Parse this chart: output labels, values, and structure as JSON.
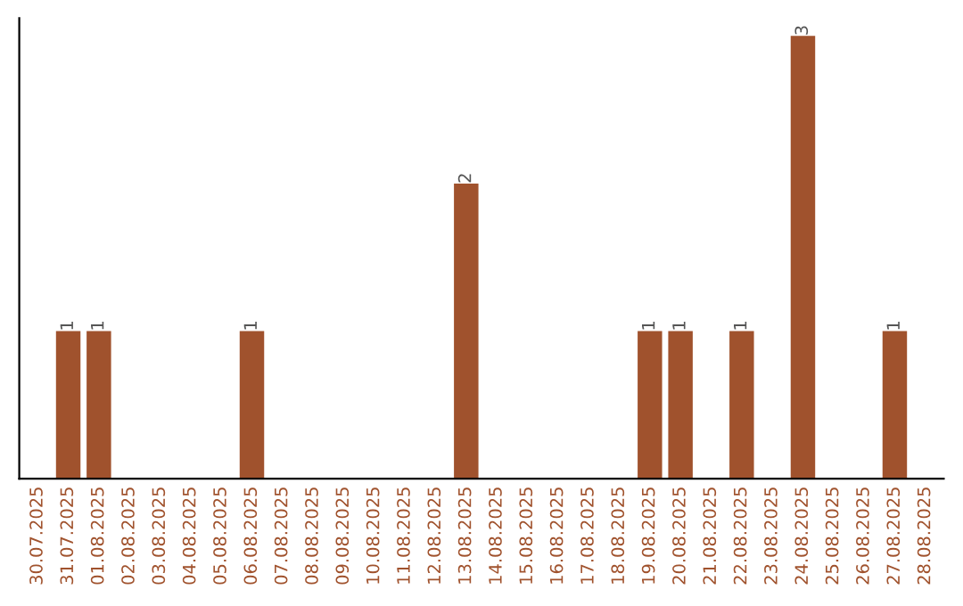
{
  "chart_data": {
    "type": "bar",
    "categories": [
      "30.07.2025",
      "31.07.2025",
      "01.08.2025",
      "02.08.2025",
      "03.08.2025",
      "04.08.2025",
      "05.08.2025",
      "06.08.2025",
      "07.08.2025",
      "08.08.2025",
      "09.08.2025",
      "10.08.2025",
      "11.08.2025",
      "12.08.2025",
      "13.08.2025",
      "14.08.2025",
      "15.08.2025",
      "16.08.2025",
      "17.08.2025",
      "18.08.2025",
      "19.08.2025",
      "20.08.2025",
      "21.08.2025",
      "22.08.2025",
      "23.08.2025",
      "24.08.2025",
      "25.08.2025",
      "26.08.2025",
      "27.08.2025",
      "28.08.2025"
    ],
    "values": [
      null,
      1,
      1,
      null,
      null,
      null,
      null,
      1,
      null,
      null,
      null,
      null,
      null,
      null,
      2,
      null,
      null,
      null,
      null,
      null,
      1,
      1,
      null,
      1,
      null,
      3,
      null,
      null,
      1,
      null
    ],
    "value_labels": [
      null,
      "1",
      "1",
      null,
      null,
      null,
      null,
      "1",
      null,
      null,
      null,
      null,
      null,
      null,
      "2",
      null,
      null,
      null,
      null,
      null,
      "1",
      "1",
      null,
      "1",
      null,
      "3",
      null,
      null,
      "1",
      null
    ],
    "color": "#a0522d",
    "ylim": [
      0,
      3.12
    ],
    "grid": false,
    "legend": false
  }
}
